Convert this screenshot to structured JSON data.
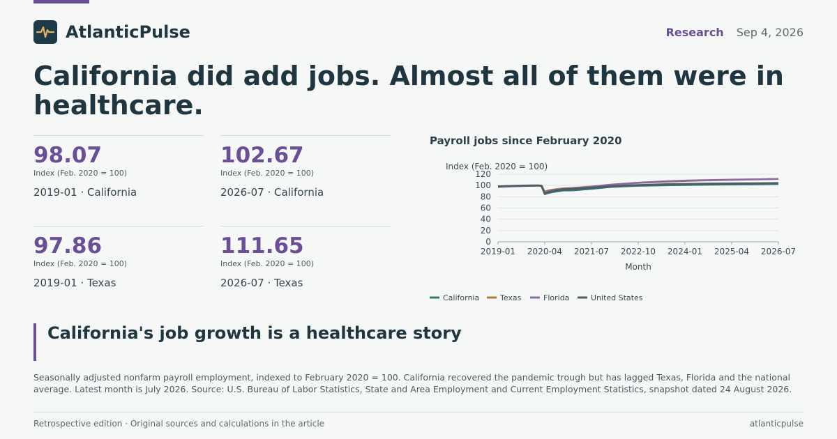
{
  "brand": {
    "name": "AtlanticPulse",
    "logo_icon": "pulse-icon"
  },
  "header": {
    "section": "Research",
    "date": "Sep 4, 2026"
  },
  "headline": "California did add jobs. Almost all of them were in healthcare.",
  "kpis": [
    {
      "value": "98.07",
      "unit": "Index (Feb. 2020 = 100)",
      "label": "2019-01 · California"
    },
    {
      "value": "102.67",
      "unit": "Index (Feb. 2020 = 100)",
      "label": "2026-07 · California"
    },
    {
      "value": "97.86",
      "unit": "Index (Feb. 2020 = 100)",
      "label": "2019-01 · Texas"
    },
    {
      "value": "111.65",
      "unit": "Index (Feb. 2020 = 100)",
      "label": "2026-07 · Texas"
    }
  ],
  "colors": {
    "accent": "#6a4f96",
    "ink": "#1f3540",
    "california": "#2a7a72",
    "texas": "#b07a34",
    "florida": "#8a6aa8",
    "united_states": "#4f5d66"
  },
  "chart_data": {
    "type": "line",
    "title": "Payroll jobs since February 2020",
    "ylabel": "Index (Feb. 2020 = 100)",
    "xlabel": "Month",
    "ylim": [
      0,
      120
    ],
    "yticks": [
      0,
      20,
      40,
      60,
      80,
      100,
      120
    ],
    "x_ticks": [
      "2019-01",
      "2020-04",
      "2021-07",
      "2022-10",
      "2024-01",
      "2025-04",
      "2026-07"
    ],
    "grid": true,
    "legend_position": "bottom",
    "x": [
      "2019-01",
      "2019-07",
      "2020-01",
      "2020-02",
      "2020-03",
      "2020-04",
      "2020-05",
      "2020-07",
      "2020-10",
      "2021-01",
      "2021-07",
      "2022-01",
      "2022-10",
      "2023-07",
      "2024-01",
      "2024-07",
      "2025-04",
      "2026-01",
      "2026-07"
    ],
    "series": [
      {
        "name": "California",
        "color": "#2a7a72",
        "values": [
          98.07,
          99.0,
          99.9,
          100.0,
          99.2,
          84.5,
          86.5,
          88.8,
          91.0,
          91.3,
          94.0,
          97.2,
          99.5,
          100.3,
          100.8,
          101.3,
          101.8,
          102.2,
          102.67
        ]
      },
      {
        "name": "Texas",
        "color": "#b07a34",
        "values": [
          97.86,
          98.9,
          99.8,
          100.0,
          99.5,
          88.8,
          91.0,
          93.0,
          95.0,
          95.8,
          98.0,
          101.0,
          104.5,
          106.8,
          108.0,
          109.0,
          110.0,
          110.9,
          111.65
        ]
      },
      {
        "name": "Florida",
        "color": "#8a6aa8",
        "values": [
          97.5,
          98.6,
          99.7,
          100.0,
          99.3,
          86.5,
          89.5,
          92.0,
          94.0,
          95.0,
          98.0,
          101.5,
          105.0,
          107.5,
          108.8,
          109.5,
          110.3,
          111.0,
          111.6
        ]
      },
      {
        "name": "United States",
        "color": "#4f5d66",
        "values": [
          98.3,
          99.2,
          99.9,
          100.0,
          99.1,
          85.5,
          87.8,
          90.5,
          93.0,
          93.7,
          96.0,
          98.5,
          100.6,
          102.0,
          102.5,
          103.0,
          103.4,
          103.8,
          104.0
        ]
      }
    ]
  },
  "callout": "California's job growth is a healthcare story",
  "caption": "Seasonally adjusted nonfarm payroll employment, indexed to February 2020 = 100. California recovered the pandemic trough but has lagged Texas, Florida and the national average. Latest month is July 2026. Source: U.S. Bureau of Labor Statistics, State and Area Employment and Current Employment Statistics, snapshot dated 24 August 2026.",
  "footer": {
    "left": "Retrospective edition · Original sources and calculations in the article",
    "right": "atlanticpulse"
  }
}
